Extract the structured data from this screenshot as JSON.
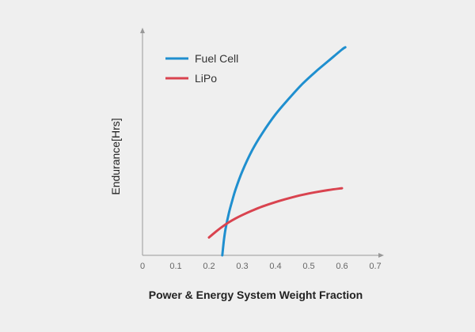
{
  "chart_data": {
    "type": "line",
    "title": "",
    "xlabel": "Power & Energy System Weight Fraction",
    "ylabel": "Endurance[Hrs]",
    "xlim": [
      0,
      0.7
    ],
    "ylim": [
      0,
      10
    ],
    "x_ticks": [
      0,
      0.1,
      0.2,
      0.3,
      0.4,
      0.5,
      0.6,
      0.7
    ],
    "x_tick_labels": [
      "0",
      "0.1",
      "0.2",
      "0.3",
      "0.4",
      "0.5",
      "0.6",
      "0.7"
    ],
    "y_ticks_shown": false,
    "grid": false,
    "legend_position": "top-left",
    "series": [
      {
        "name": "Fuel Cell",
        "color": "#1f8fcf",
        "x": [
          0.24,
          0.245,
          0.25,
          0.26,
          0.27,
          0.28,
          0.3,
          0.33,
          0.36,
          0.4,
          0.44,
          0.48,
          0.52,
          0.56,
          0.6,
          0.61
        ],
        "y": [
          0.0,
          0.7,
          1.2,
          1.9,
          2.45,
          2.95,
          3.75,
          4.7,
          5.45,
          6.3,
          7.0,
          7.65,
          8.2,
          8.7,
          9.2,
          9.3
        ]
      },
      {
        "name": "LiPo",
        "color": "#d9434f",
        "x": [
          0.2,
          0.22,
          0.24,
          0.26,
          0.28,
          0.3,
          0.33,
          0.36,
          0.4,
          0.44,
          0.48,
          0.52,
          0.56,
          0.6
        ],
        "y": [
          0.8,
          1.05,
          1.28,
          1.48,
          1.65,
          1.8,
          2.0,
          2.18,
          2.38,
          2.55,
          2.7,
          2.82,
          2.92,
          3.0
        ]
      }
    ]
  }
}
